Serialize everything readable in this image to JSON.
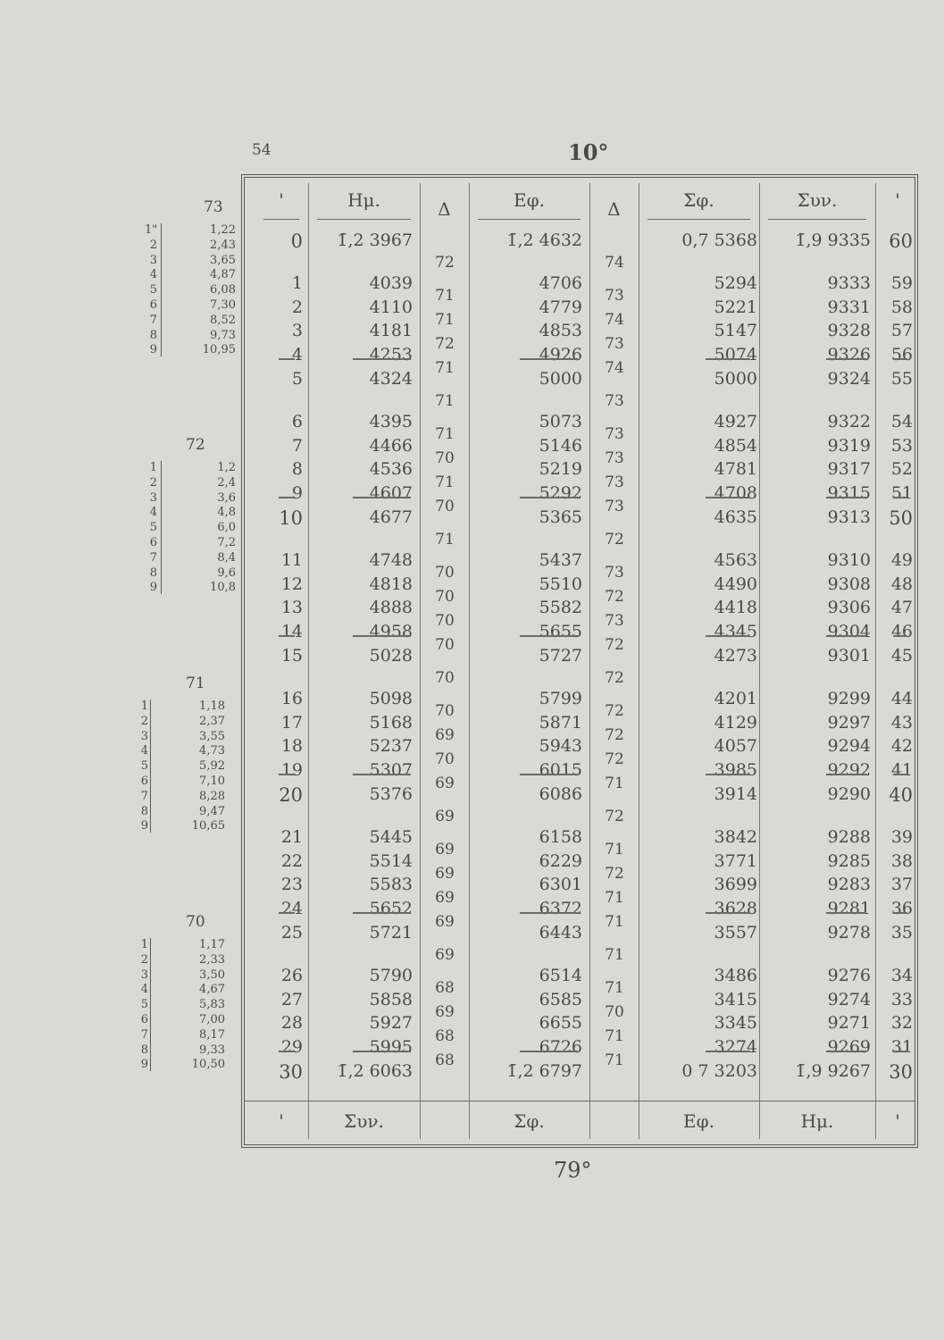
{
  "page": {
    "number": "54",
    "degree_top": "10°",
    "degree_bottom": "79°"
  },
  "header": [
    "'",
    "Ημ.",
    "Δ",
    "Εφ.",
    "Δ",
    "Σφ.",
    "Συν.",
    "'"
  ],
  "footer": [
    "'",
    "Συν.",
    "Σφ.",
    "Εφ.",
    "Ημ.",
    "'"
  ],
  "minutes_left": [
    "0",
    "1",
    "2",
    "3",
    "4",
    "5",
    "6",
    "7",
    "8",
    "9",
    "10",
    "11",
    "12",
    "13",
    "14",
    "15",
    "16",
    "17",
    "18",
    "19",
    "20",
    "21",
    "22",
    "23",
    "24",
    "25",
    "26",
    "27",
    "28",
    "29",
    "30"
  ],
  "minutes_right": [
    "60",
    "59",
    "58",
    "57",
    "56",
    "55",
    "54",
    "53",
    "52",
    "51",
    "50",
    "49",
    "48",
    "47",
    "46",
    "45",
    "44",
    "43",
    "42",
    "41",
    "40",
    "39",
    "38",
    "37",
    "36",
    "35",
    "34",
    "33",
    "32",
    "31",
    "30"
  ],
  "hm": [
    "1̄,2 3967",
    "4039",
    "4110",
    "4181",
    "4253",
    "4324",
    "4395",
    "4466",
    "4536",
    "4607",
    "4677",
    "4748",
    "4818",
    "4888",
    "4958",
    "5028",
    "5098",
    "5168",
    "5237",
    "5307",
    "5376",
    "5445",
    "5514",
    "5583",
    "5652",
    "5721",
    "5790",
    "5858",
    "5927",
    "5995",
    "1̄,2 6063"
  ],
  "hm_delta": [
    "72",
    "71",
    "71",
    "72",
    "71",
    "71",
    "71",
    "70",
    "71",
    "70",
    "71",
    "70",
    "70",
    "70",
    "70",
    "70",
    "70",
    "69",
    "70",
    "69",
    "69",
    "69",
    "69",
    "69",
    "69",
    "69",
    "68",
    "69",
    "68",
    "68"
  ],
  "ef": [
    "1̄,2 4632",
    "4706",
    "4779",
    "4853",
    "4926",
    "5000",
    "5073",
    "5146",
    "5219",
    "5292",
    "5365",
    "5437",
    "5510",
    "5582",
    "5655",
    "5727",
    "5799",
    "5871",
    "5943",
    "6015",
    "6086",
    "6158",
    "6229",
    "6301",
    "6372",
    "6443",
    "6514",
    "6585",
    "6655",
    "6726",
    "1̄,2 6797"
  ],
  "ef_delta": [
    "74",
    "73",
    "74",
    "73",
    "74",
    "73",
    "73",
    "73",
    "73",
    "73",
    "72",
    "73",
    "72",
    "73",
    "72",
    "72",
    "72",
    "72",
    "72",
    "71",
    "72",
    "71",
    "72",
    "71",
    "71",
    "71",
    "71",
    "70",
    "71",
    "71"
  ],
  "sf": [
    "0,7 5368",
    "5294",
    "5221",
    "5147",
    "5074",
    "5000",
    "4927",
    "4854",
    "4781",
    "4708",
    "4635",
    "4563",
    "4490",
    "4418",
    "4345",
    "4273",
    "4201",
    "4129",
    "4057",
    "3985",
    "3914",
    "3842",
    "3771",
    "3699",
    "3628",
    "3557",
    "3486",
    "3415",
    "3345",
    "3274",
    "0 7 3203"
  ],
  "syn": [
    "1̄,9 9335",
    "9333",
    "9331",
    "9328",
    "9326",
    "9324",
    "9322",
    "9319",
    "9317",
    "9315",
    "9313",
    "9310",
    "9308",
    "9306",
    "9304",
    "9301",
    "9299",
    "9297",
    "9294",
    "9292",
    "9290",
    "9288",
    "9285",
    "9283",
    "9281",
    "9278",
    "9276",
    "9274",
    "9271",
    "9269",
    "1̄,9 9267"
  ],
  "proportional_parts": [
    {
      "title": "73",
      "rows": [
        [
          "1\"",
          "1,22"
        ],
        [
          "2",
          "2,43"
        ],
        [
          "3",
          "3,65"
        ],
        [
          "4",
          "4,87"
        ],
        [
          "5",
          "6,08"
        ],
        [
          "6",
          "7,30"
        ],
        [
          "7",
          "8,52"
        ],
        [
          "8",
          "9,73"
        ],
        [
          "9",
          "10,95"
        ]
      ]
    },
    {
      "title": "72",
      "rows": [
        [
          "1",
          "1,2"
        ],
        [
          "2",
          "2,4"
        ],
        [
          "3",
          "3,6"
        ],
        [
          "4",
          "4,8"
        ],
        [
          "5",
          "6,0"
        ],
        [
          "6",
          "7,2"
        ],
        [
          "7",
          "8,4"
        ],
        [
          "8",
          "9,6"
        ],
        [
          "9",
          "10,8"
        ]
      ]
    },
    {
      "title": "71",
      "rows": [
        [
          "1",
          "1,18"
        ],
        [
          "2",
          "2,37"
        ],
        [
          "3",
          "3,55"
        ],
        [
          "4",
          "4,73"
        ],
        [
          "5",
          "5,92"
        ],
        [
          "6",
          "7,10"
        ],
        [
          "7",
          "8,28"
        ],
        [
          "8",
          "9,47"
        ],
        [
          "9",
          "10,65"
        ]
      ]
    },
    {
      "title": "70",
      "rows": [
        [
          "1",
          "1,17"
        ],
        [
          "2",
          "2,33"
        ],
        [
          "3",
          "3,50"
        ],
        [
          "4",
          "4,67"
        ],
        [
          "5",
          "5,83"
        ],
        [
          "6",
          "7,00"
        ],
        [
          "7",
          "8,17"
        ],
        [
          "8",
          "9,33"
        ],
        [
          "9",
          "10,50"
        ]
      ]
    }
  ]
}
